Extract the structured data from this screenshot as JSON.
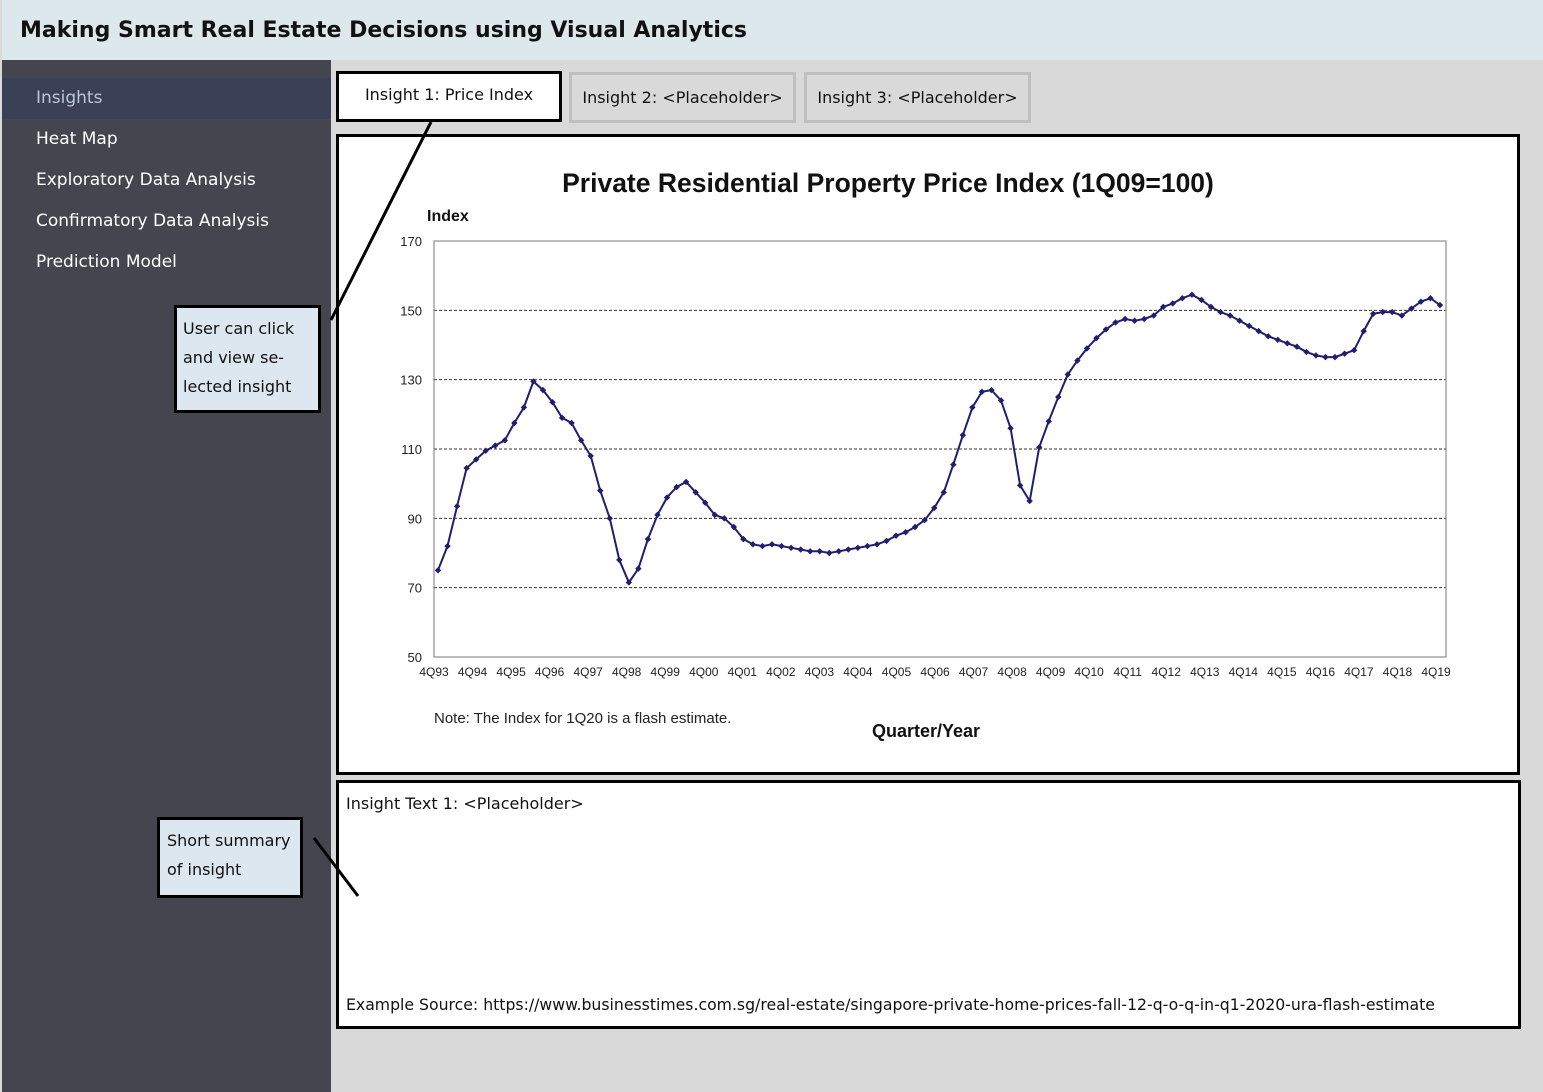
{
  "header": {
    "title": "Making Smart Real Estate Decisions using Visual Analytics"
  },
  "sidebar": {
    "items": [
      {
        "label": "Insights",
        "active": true
      },
      {
        "label": "Heat Map",
        "active": false
      },
      {
        "label": "Exploratory Data Analysis",
        "active": false
      },
      {
        "label": "Confirmatory Data Analysis",
        "active": false
      },
      {
        "label": "Prediction Model",
        "active": false
      }
    ]
  },
  "callouts": {
    "tabs_note": [
      "User can click",
      "and view se-",
      "lected insight"
    ],
    "summary_note": [
      "Short summary",
      "of insight"
    ]
  },
  "tabs": [
    {
      "label": "Insight 1: Price Index",
      "selected": true
    },
    {
      "label": "Insight 2: <Placeholder>",
      "selected": false
    },
    {
      "label": "Insight 3: <Placeholder>",
      "selected": false
    }
  ],
  "chart_data": {
    "type": "line",
    "title": "Private Residential Property Price Index (1Q09=100)",
    "ylabel": "Index",
    "xlabel": "Quarter/Year",
    "note": "Note: The Index for 1Q20 is a flash estimate.",
    "ylim": [
      50,
      170
    ],
    "yticks": [
      50,
      70,
      90,
      110,
      130,
      150,
      170
    ],
    "grid": true,
    "line_color": "#1f1f6e",
    "xticks": [
      "4Q93",
      "4Q94",
      "4Q95",
      "4Q96",
      "4Q97",
      "4Q98",
      "4Q99",
      "4Q00",
      "4Q01",
      "4Q02",
      "4Q03",
      "4Q04",
      "4Q05",
      "4Q06",
      "4Q07",
      "4Q08",
      "4Q09",
      "4Q10",
      "4Q11",
      "4Q12",
      "4Q13",
      "4Q14",
      "4Q15",
      "4Q16",
      "4Q17",
      "4Q18",
      "4Q19"
    ],
    "x_start": "4Q93",
    "x_end": "1Q20",
    "values": [
      75,
      82,
      93.5,
      104.5,
      107,
      109.5,
      111,
      112.5,
      117.5,
      122,
      129.5,
      127,
      123.5,
      119,
      117.5,
      112.5,
      108,
      98,
      90,
      78,
      71.5,
      75.5,
      84,
      91,
      96,
      99,
      100.5,
      97.5,
      94.5,
      91,
      90,
      87.5,
      84,
      82.5,
      82,
      82.5,
      82,
      81.5,
      81,
      80.5,
      80.5,
      80,
      80.5,
      81,
      81.5,
      82,
      82.5,
      83.5,
      85,
      86,
      87.5,
      89.5,
      93,
      97.5,
      105.5,
      114,
      122,
      126.5,
      127,
      124,
      116,
      99.5,
      95,
      110.5,
      118,
      125,
      131.5,
      135.5,
      139,
      142,
      144.5,
      146.5,
      147.5,
      147,
      147.5,
      148.5,
      151,
      152,
      153.5,
      154.5,
      153,
      151,
      149.5,
      148.5,
      147,
      145.5,
      144,
      142.5,
      141.5,
      140.5,
      139.5,
      138,
      137,
      136.5,
      136.5,
      137.5,
      138.5,
      144,
      149,
      149.5,
      149.5,
      148.5,
      150.5,
      152.5,
      153.5,
      151.5
    ]
  },
  "insight_text": "Insight Text 1: <Placeholder>",
  "source_text": "Example Source: https://www.businesstimes.com.sg/real-estate/singapore-private-home-prices-fall-12-q-o-q-in-q1-2020-ura-flash-estimate"
}
